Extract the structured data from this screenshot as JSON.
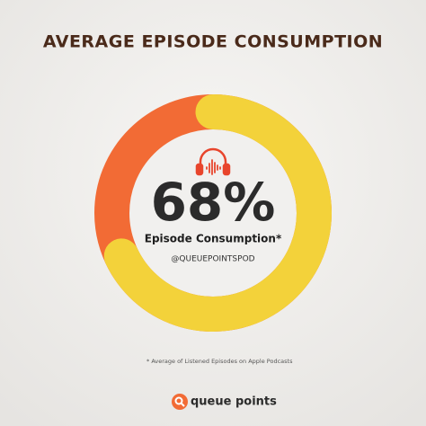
{
  "chart_data": {
    "type": "donut",
    "title": "AVERAGE EPISODE CONSUMPTION",
    "categories": [
      "Episode Consumption*"
    ],
    "values": [
      68
    ],
    "value_labels": [
      "68%"
    ],
    "color": "#f3d23a",
    "track_color": "#f26b35",
    "max": 100,
    "handle": "@QUEUEPOINTSPOD",
    "footnote": "* Average of Listened Episodes on Apple Podcasts",
    "brand": "queue points"
  }
}
